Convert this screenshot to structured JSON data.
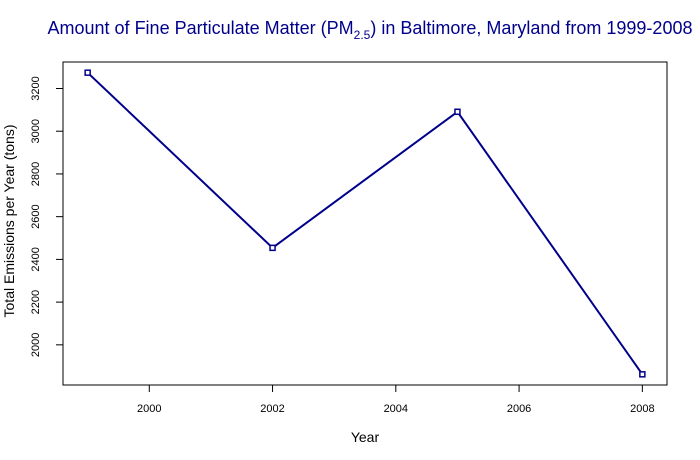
{
  "chart_data": {
    "type": "line",
    "title": {
      "prefix": "Amount of Fine Particulate Matter (PM",
      "subscript": "2.5",
      "suffix": ") in Baltimore, Maryland from 1999-2008"
    },
    "xlabel": "Year",
    "ylabel": "Total Emissions per Year (tons)",
    "x": [
      1999,
      2002,
      2005,
      2008
    ],
    "series": [
      {
        "values": [
          3274,
          2454,
          3091,
          1862
        ]
      }
    ],
    "xlim": [
      1998.6,
      2008.4
    ],
    "ylim": [
      1812,
      3324
    ],
    "xticks": [
      2000,
      2002,
      2004,
      2006,
      2008
    ],
    "yticks": [
      2000,
      2200,
      2400,
      2600,
      2800,
      3000,
      3200
    ],
    "grid": false,
    "colors": {
      "title": "#00008b",
      "line": "#00008b",
      "axis": "#000000"
    }
  }
}
